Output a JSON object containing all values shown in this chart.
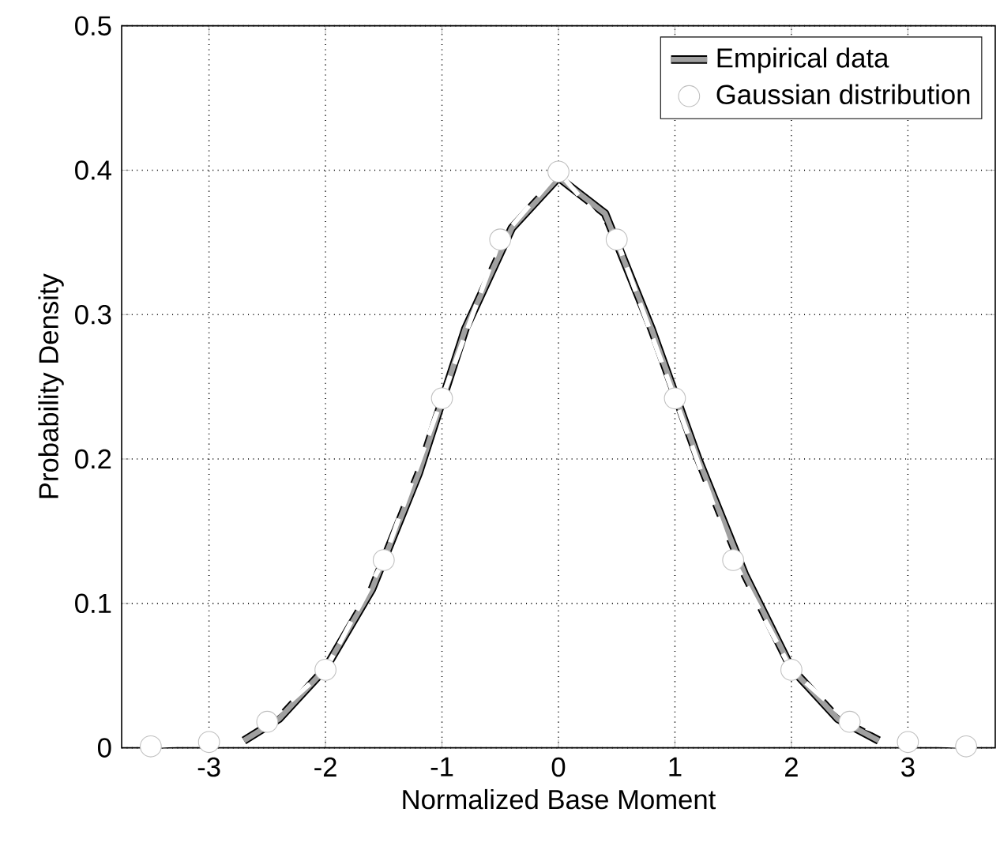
{
  "chart_data": {
    "type": "line",
    "xlabel": "Normalized Base Moment",
    "ylabel": "Probability Density",
    "xlim": [
      -3.75,
      3.75
    ],
    "ylim": [
      0,
      0.5
    ],
    "xticks": [
      -3,
      -2,
      -1,
      0,
      1,
      2,
      3
    ],
    "yticks": [
      0,
      0.1,
      0.2,
      0.3,
      0.4,
      0.5
    ],
    "grid": true,
    "legend": "top right",
    "series": [
      {
        "name": "Empirical data",
        "color": "#a0a0a0",
        "line_style": "solid",
        "marker": "none",
        "x": [
          -2.7,
          -2.4,
          -2.0,
          -1.6,
          -1.2,
          -0.8,
          -0.4,
          0,
          0.4,
          0.8,
          1.2,
          1.6,
          2.0,
          2.4,
          2.75
        ],
        "values": [
          0.005,
          0.02,
          0.055,
          0.11,
          0.19,
          0.29,
          0.36,
          0.395,
          0.37,
          0.29,
          0.2,
          0.12,
          0.055,
          0.02,
          0.005
        ]
      },
      {
        "name": "Gaussian distribution",
        "color": "#ffffff",
        "line_style": "dashed",
        "marker": "circle",
        "x": [
          -3.5,
          -3,
          -2.5,
          -2,
          -1.5,
          -1,
          -0.5,
          0,
          0.5,
          1,
          1.5,
          2,
          2.5,
          3,
          3.5
        ],
        "values": [
          0.001,
          0.004,
          0.018,
          0.054,
          0.13,
          0.242,
          0.352,
          0.399,
          0.352,
          0.242,
          0.13,
          0.054,
          0.018,
          0.004,
          0.001
        ]
      }
    ]
  }
}
